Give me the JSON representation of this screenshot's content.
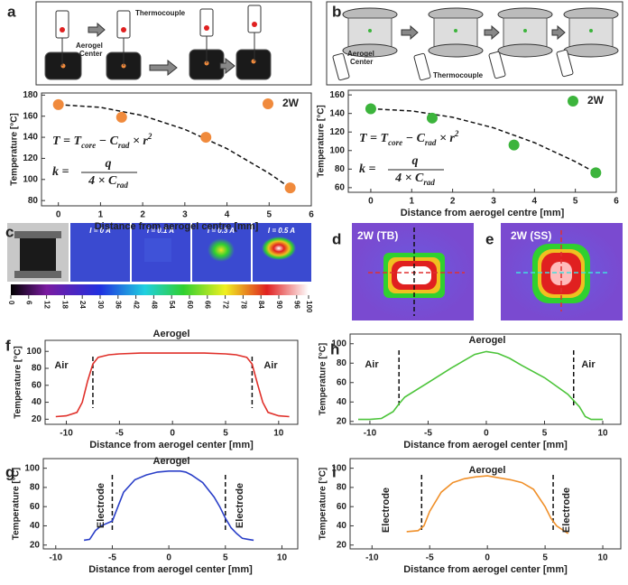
{
  "figure": {
    "diagram_a": {
      "letter": "a",
      "labels": [
        "Thermocouple",
        "Aerogel",
        "Center"
      ]
    },
    "diagram_b": {
      "letter": "b",
      "labels": [
        "Aerogel",
        "Center",
        "Thermocouple"
      ]
    },
    "panel_c": {
      "letter": "c",
      "images": [
        "I = 0 A",
        "I = 0.1 A",
        "I = 0.3 A",
        "I = 0.5 A"
      ],
      "colorbar": {
        "clim": [
          0,
          100
        ],
        "ticks": [
          0,
          6,
          12,
          18,
          24,
          30,
          36,
          42,
          48,
          54,
          60,
          66,
          72,
          78,
          84,
          90,
          96,
          100
        ]
      }
    },
    "panel_d": {
      "letter": "d",
      "label": "2W (TB)"
    },
    "panel_e": {
      "letter": "e",
      "label": "2W (SS)"
    }
  },
  "chart_data": [
    {
      "type": "scatter",
      "letter": "a",
      "xlabel": "Distance from aerogel centre [mm]",
      "ylabel": "Temperature [°C]",
      "xlim": [
        -0.4,
        6
      ],
      "xticks": [
        0,
        1,
        2,
        3,
        4,
        5,
        6
      ],
      "ylim": [
        75,
        182
      ],
      "yticks": [
        80,
        100,
        120,
        140,
        160,
        180
      ],
      "legend": "upper right",
      "series": [
        {
          "name": "2W",
          "color": "#f08a3c",
          "x": [
            0,
            1.5,
            3.5,
            5.5
          ],
          "values": [
            171,
            159,
            140,
            92
          ]
        }
      ],
      "fit": {
        "x": [
          0,
          1,
          2,
          3,
          4,
          5,
          5.5
        ],
        "y": [
          171,
          168.4,
          160.6,
          147.5,
          129.2,
          105.8,
          92
        ]
      },
      "equation_1": [
        {
          "text": "T = T"
        },
        {
          "text": "core",
          "sub": true
        },
        {
          "text": " − C"
        },
        {
          "text": "rad",
          "sub": true
        },
        {
          "text": " × r"
        },
        {
          "text": "2",
          "sup": true
        }
      ],
      "equation_2": {
        "lhs": "k =",
        "numerator": "q",
        "denominator": [
          {
            "text": "4 × C"
          },
          {
            "text": "rad",
            "sub": true
          }
        ]
      }
    },
    {
      "type": "scatter",
      "letter": "b",
      "xlabel": "Distance from aerogel centre [mm]",
      "ylabel": "Temperature [°C]",
      "xlim": [
        -0.55,
        6
      ],
      "xticks": [
        0,
        1,
        2,
        3,
        4,
        5,
        6
      ],
      "ylim": [
        55,
        165
      ],
      "yticks": [
        60,
        80,
        100,
        120,
        140,
        160
      ],
      "legend": "upper right",
      "series": [
        {
          "name": "2W",
          "color": "#3cb43c",
          "x": [
            0,
            1.5,
            3.5,
            5.5
          ],
          "values": [
            145,
            135,
            106,
            76
          ]
        }
      ],
      "fit": {
        "x": [
          0,
          1,
          2,
          3,
          4,
          5,
          5.5
        ],
        "y": [
          145,
          142.7,
          135.9,
          124.5,
          108.5,
          88,
          76
        ]
      },
      "equation_1": [
        {
          "text": "T = T"
        },
        {
          "text": "core",
          "sub": true
        },
        {
          "text": " − C"
        },
        {
          "text": "rad",
          "sub": true
        },
        {
          "text": " × r"
        },
        {
          "text": "2",
          "sup": true
        }
      ],
      "equation_2": {
        "lhs": "k =",
        "numerator": "q",
        "denominator": [
          {
            "text": "4 × C"
          },
          {
            "text": "rad",
            "sub": true
          }
        ]
      }
    },
    {
      "type": "line",
      "letter": "f",
      "xlabel": "Distance from aerogel center [mm]",
      "ylabel": "Temperature [°C]",
      "xlim": [
        -12,
        11.8
      ],
      "xticks": [
        -10,
        -5,
        0,
        5,
        10
      ],
      "ylim": [
        14,
        113
      ],
      "yticks": [
        20,
        40,
        60,
        80,
        100
      ],
      "x": [
        -11,
        -10,
        -9,
        -8.5,
        -8,
        -7.5,
        -7,
        -6,
        -5,
        -3,
        0,
        3,
        5,
        6,
        7,
        7.5,
        8,
        8.5,
        9,
        10,
        11
      ],
      "series": [
        {
          "color": "#e0302a",
          "values": [
            23,
            24,
            28,
            40,
            65,
            85,
            93,
            96,
            97,
            98,
            98,
            98,
            97,
            96,
            93,
            85,
            62,
            40,
            28,
            24,
            23
          ]
        }
      ],
      "vlines": [
        -7.5,
        7.5
      ],
      "annotations": [
        "Aerogel",
        "Air",
        "Air"
      ]
    },
    {
      "type": "line",
      "letter": "h",
      "xlabel": "Distance from aerogel center [mm]",
      "ylabel": "Temperature [°C]",
      "xlim": [
        -11.7,
        11.55
      ],
      "xticks": [
        -10,
        -5,
        0,
        5,
        10
      ],
      "ylim": [
        17,
        110
      ],
      "yticks": [
        20,
        40,
        60,
        80,
        100
      ],
      "x": [
        -11,
        -10,
        -9,
        -8,
        -7.5,
        -7,
        -5,
        -3,
        -2,
        -1,
        0,
        1,
        2,
        3,
        5,
        7,
        8,
        8.5,
        9,
        10
      ],
      "series": [
        {
          "color": "#4cc43a",
          "values": [
            22,
            22,
            23,
            30,
            38,
            45,
            60,
            75,
            82,
            89,
            92,
            90,
            85,
            78,
            65,
            48,
            35,
            25,
            22,
            22
          ]
        }
      ],
      "vlines": [
        -7.5,
        7.5
      ],
      "annotations": [
        "Aerogel",
        "Air",
        "Air"
      ]
    },
    {
      "type": "line",
      "letter": "g",
      "xlabel": "Distance from aerogel center [mm]",
      "ylabel": "Temperature [°C]",
      "xlim": [
        -11.1,
        11.4
      ],
      "xticks": [
        -10,
        -5,
        0,
        5,
        10
      ],
      "ylim": [
        16,
        110
      ],
      "yticks": [
        20,
        40,
        60,
        80,
        100
      ],
      "x": [
        -7.5,
        -7,
        -6.5,
        -6,
        -5,
        -4.5,
        -4,
        -3,
        -2,
        -1,
        0,
        1,
        1.5,
        2,
        3,
        4,
        4.5,
        5,
        5.5,
        6,
        6.5,
        7,
        7.5
      ],
      "series": [
        {
          "color": "#2a3fc8",
          "values": [
            25,
            26,
            35,
            40,
            45,
            60,
            75,
            88,
            93,
            96,
            97,
            97,
            96,
            93,
            85,
            70,
            60,
            48,
            38,
            32,
            27,
            26,
            25
          ]
        }
      ],
      "vlines": [
        -5,
        5
      ],
      "annotations": [
        "Aerogel",
        "Electrode",
        "Electrode"
      ]
    },
    {
      "type": "line",
      "letter": "i",
      "xlabel": "Distance from aerogel center [mm]",
      "ylabel": "Temperature [°C]",
      "xlim": [
        -11.9,
        11.56
      ],
      "xticks": [
        -10,
        -5,
        0,
        5,
        10
      ],
      "ylim": [
        16,
        110
      ],
      "yticks": [
        20,
        40,
        60,
        80,
        100
      ],
      "x": [
        -7,
        -6,
        -5.5,
        -5,
        -4,
        -3,
        -2,
        -1,
        0,
        1,
        2,
        3,
        4,
        5,
        5.5,
        6,
        7
      ],
      "series": [
        {
          "color": "#f0902a",
          "values": [
            34,
            35,
            40,
            55,
            75,
            85,
            89,
            91,
            92,
            90,
            88,
            85,
            78,
            60,
            48,
            40,
            32
          ]
        }
      ],
      "vlines": [
        -5.7,
        5.7
      ],
      "annotations": [
        "Aerogel",
        "Electrode",
        "Electrode"
      ]
    }
  ]
}
